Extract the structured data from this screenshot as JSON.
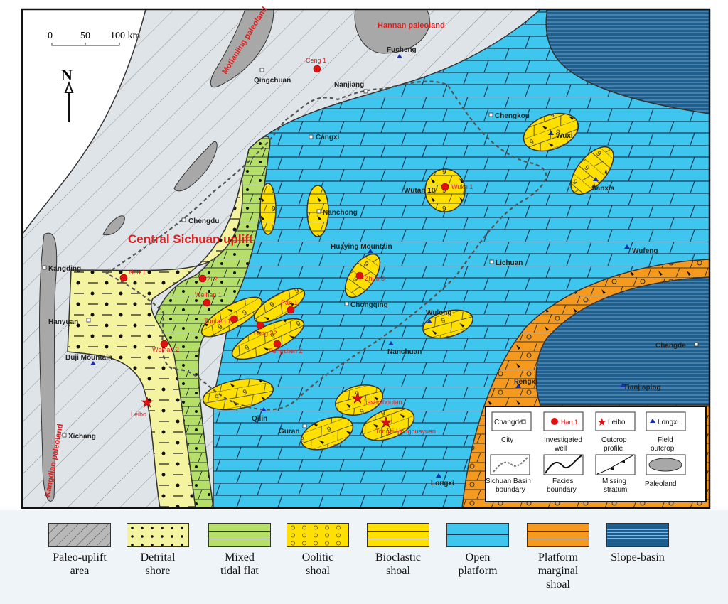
{
  "scale_bar": {
    "ticks": [
      "0",
      "50",
      "100 km"
    ]
  },
  "north_arrow": {
    "label": "N"
  },
  "regions": {
    "central_uplift": "Central Sichuan uplift",
    "motianling": "Motianling paleoland",
    "hannan": "Hannan paleoland",
    "kangdian": "Kangdian paleoland"
  },
  "cities": [
    "Qingchuan",
    "Nanjiang",
    "Cangxi",
    "Chengkou",
    "Chengdu",
    "Nanchong",
    "Kangding",
    "Hanyuan",
    "Chongqing",
    "Lichuan",
    "Xichang",
    "Guran",
    "Changde",
    "Wutan 10"
  ],
  "wells": [
    "Ceng 1",
    "Wuke 1",
    "Han 1",
    "Zi 2",
    "Weihan 1",
    "Zuohen 1",
    "Pan 1",
    "Long 32",
    "Fengzhen 2",
    "Weihan 2",
    "Zhuo 3"
  ],
  "outcrops": [
    "Leibo",
    "Jiashuihoutan",
    "Tongzi-Honghuayuan"
  ],
  "field_outcrops": [
    "Fucheng",
    "Wuxi",
    "Sanxia",
    "Huaying Mountain",
    "Wufeng",
    "Wulong",
    "Nanchuan",
    "Buji Mountain",
    "Qilin",
    "Pengxi",
    "Tianjiaping",
    "Longxi"
  ],
  "map_legend": {
    "city": {
      "sample": "Changde",
      "label": "City"
    },
    "well": {
      "sample": "Han 1",
      "label1": "Investigated",
      "label2": "well"
    },
    "outcrop": {
      "sample": "Leibo",
      "label1": "Outcrop",
      "label2": "profile"
    },
    "field": {
      "sample": "Longxi",
      "label1": "Field",
      "label2": "outcrop"
    },
    "basin": {
      "label1": "Sichuan Basin",
      "label2": "boundary"
    },
    "facies": {
      "label1": "Facies",
      "label2": "boundary"
    },
    "missing": {
      "label1": "Missing",
      "label2": "stratum"
    },
    "paleoland": {
      "label1": "Paleoland"
    }
  },
  "facies_legend": [
    {
      "line1": "Paleo-uplift",
      "line2": "area",
      "line3": "",
      "color": "#b8b8b8"
    },
    {
      "line1": "Detrital",
      "line2": "shore",
      "line3": "",
      "color": "#f3f3a0"
    },
    {
      "line1": "Mixed",
      "line2": "tidal flat",
      "line3": "",
      "color": "#b6df6a"
    },
    {
      "line1": "Oolitic",
      "line2": "shoal",
      "line3": "",
      "color": "#ffe000"
    },
    {
      "line1": "Bioclastic",
      "line2": "shoal",
      "line3": "",
      "color": "#ffe000"
    },
    {
      "line1": "Open",
      "line2": "platform",
      "line3": "",
      "color": "#3fc6ee"
    },
    {
      "line1": "Platform",
      "line2": "marginal",
      "line3": "shoal",
      "color": "#f59a1e"
    },
    {
      "line1": "Slope-basin",
      "line2": "",
      "line3": "",
      "color": "#1f5f8f"
    }
  ]
}
